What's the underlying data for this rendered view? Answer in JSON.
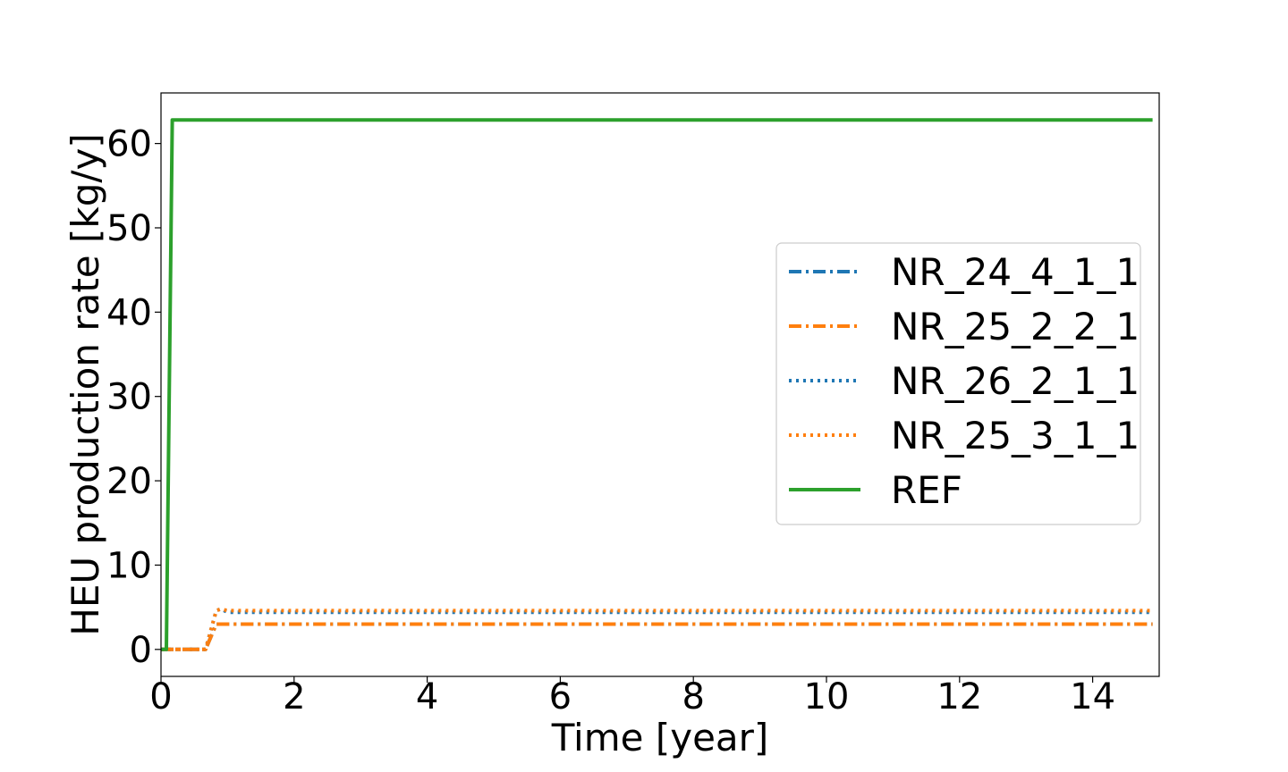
{
  "chart_data": {
    "type": "line",
    "title": "",
    "xlabel": "Time [year]",
    "ylabel": "HEU production rate [kg/y]",
    "xlim": [
      0,
      15
    ],
    "ylim": [
      -3.2,
      66
    ],
    "xticks": [
      0,
      2,
      4,
      6,
      8,
      10,
      12,
      14
    ],
    "yticks": [
      0,
      10,
      20,
      30,
      40,
      50,
      60
    ],
    "grid": false,
    "legend_position": "center-right",
    "series": [
      {
        "name": "NR_24_4_1_1",
        "color": "#1f77b4",
        "linestyle": "dashdot",
        "x": [
          0,
          0.67,
          0.83,
          0.9,
          1.0,
          14.9
        ],
        "y": [
          0,
          0,
          3.0,
          3.0,
          3.0,
          3.0
        ]
      },
      {
        "name": "NR_25_2_2_1",
        "color": "#ff7f0e",
        "linestyle": "dashdot",
        "x": [
          0,
          0.67,
          0.83,
          0.9,
          1.0,
          14.9
        ],
        "y": [
          0,
          0,
          3.0,
          3.0,
          3.0,
          3.0
        ]
      },
      {
        "name": "NR_26_2_1_1",
        "color": "#1f77b4",
        "linestyle": "dotted",
        "x": [
          0,
          0.67,
          0.83,
          0.9,
          1.0,
          14.9
        ],
        "y": [
          0,
          0,
          4.6,
          4.8,
          4.4,
          4.4
        ]
      },
      {
        "name": "NR_25_3_1_1",
        "color": "#ff7f0e",
        "linestyle": "dotted",
        "x": [
          0,
          0.67,
          0.83,
          0.9,
          1.0,
          14.9
        ],
        "y": [
          0,
          0,
          4.6,
          4.8,
          4.6,
          4.6
        ]
      },
      {
        "name": "REF",
        "color": "#2ca02c",
        "linestyle": "solid",
        "x": [
          0,
          0.08,
          0.17,
          14.9
        ],
        "y": [
          0,
          0,
          62.8,
          62.8
        ]
      }
    ]
  }
}
